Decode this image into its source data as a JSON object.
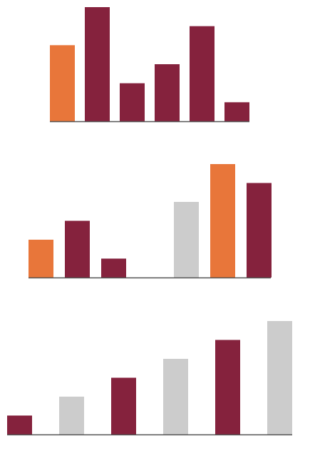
{
  "colors": {
    "highlight": "#E8763A",
    "primary": "#85223D",
    "muted": "#CCCCCC",
    "baseline": "#555555"
  },
  "chart_data": [
    {
      "type": "bar",
      "title": "",
      "xlabel": "",
      "ylabel": "",
      "ylim": [
        0,
        6
      ],
      "grid": false,
      "legend": "none",
      "categories": [
        "",
        "",
        "",
        "",
        "",
        ""
      ],
      "values": [
        4,
        6,
        2,
        3,
        5,
        1
      ],
      "colors": [
        "highlight",
        "primary",
        "primary",
        "primary",
        "primary",
        "primary"
      ]
    },
    {
      "type": "bar",
      "title": "",
      "xlabel": "",
      "ylabel": "",
      "ylim": [
        0,
        6
      ],
      "grid": false,
      "legend": "none",
      "categories": [
        "",
        "",
        "",
        "",
        "",
        "",
        ""
      ],
      "values": [
        2,
        3,
        1,
        null,
        4,
        6,
        5
      ],
      "colors": [
        "highlight",
        "primary",
        "primary",
        null,
        "muted",
        "highlight",
        "primary"
      ]
    },
    {
      "type": "bar",
      "title": "",
      "xlabel": "",
      "ylabel": "",
      "ylim": [
        0,
        6
      ],
      "grid": false,
      "legend": "none",
      "categories": [
        "",
        "",
        "",
        "",
        "",
        ""
      ],
      "values": [
        1,
        2,
        3,
        4,
        5,
        6
      ],
      "colors": [
        "primary",
        "muted",
        "primary",
        "muted",
        "primary",
        "muted"
      ]
    }
  ]
}
